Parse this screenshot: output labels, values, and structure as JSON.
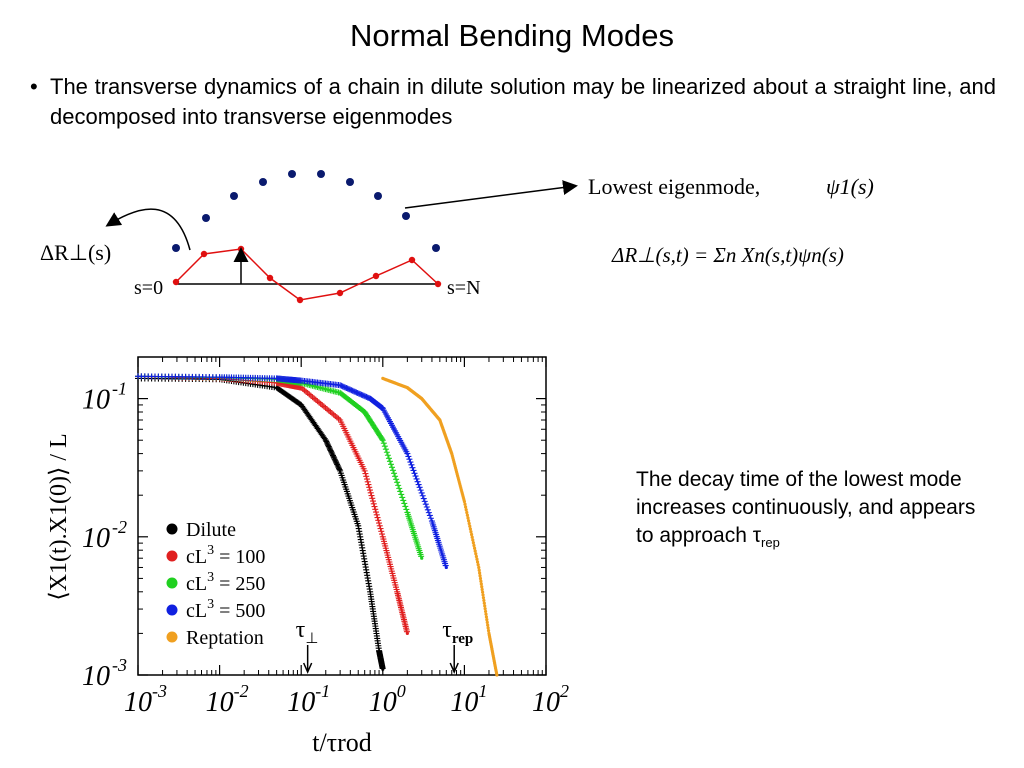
{
  "title": "Normal Bending Modes",
  "bullet": {
    "symbol": "•",
    "text": "The transverse dynamics of a chain in dilute solution may be linearized about a straight line, and decomposed into transverse eigenmodes"
  },
  "diagram": {
    "delta_r_label": "ΔR⊥(s)",
    "s0_label": "s=0",
    "sN_label": "s=N",
    "lowest_mode_label": "Lowest eigenmode,",
    "psi_label": "ψ1(s)",
    "equation": "ΔR⊥(s,t) = Σn Xn(s,t)ψn(s)",
    "colors": {
      "mode_dots": "#0a1a6e",
      "chain": "#e01010"
    }
  },
  "note": {
    "text": "The decay time of the lowest mode increases continuously, and appears to approach τ",
    "subscript": "rep"
  },
  "chart_data": {
    "type": "scatter",
    "xscale": "log",
    "yscale": "log",
    "xlim": [
      0.001,
      100
    ],
    "ylim": [
      0.001,
      0.2
    ],
    "xlabel": "t/τrod",
    "ylabel": "⟨X1(t).X1(0)⟩ / L",
    "x_tick_labels": [
      "10-3",
      "10-2",
      "10-1",
      "100",
      "101",
      "102"
    ],
    "y_tick_labels": [
      "10-3",
      "10-2",
      "10-1"
    ],
    "legend_position": "bottom-left",
    "annotations": [
      {
        "label": "τ⊥",
        "x": 0.12
      },
      {
        "label": "τrep",
        "x": 7.5
      }
    ],
    "series": [
      {
        "name": "Dilute",
        "color": "#000000",
        "x": [
          0.001,
          0.01,
          0.05,
          0.1,
          0.2,
          0.3,
          0.5,
          0.7,
          0.9,
          1.0
        ],
        "y": [
          0.14,
          0.138,
          0.12,
          0.09,
          0.05,
          0.03,
          0.012,
          0.004,
          0.0015,
          0.0011
        ]
      },
      {
        "name": "cL3 = 100",
        "color": "#e02020",
        "x": [
          0.001,
          0.01,
          0.05,
          0.1,
          0.3,
          0.6,
          1.0,
          1.5,
          2.0
        ],
        "y": [
          0.145,
          0.14,
          0.13,
          0.12,
          0.07,
          0.03,
          0.01,
          0.004,
          0.002
        ]
      },
      {
        "name": "cL3 = 250",
        "color": "#20d020",
        "x": [
          0.001,
          0.01,
          0.05,
          0.1,
          0.3,
          0.6,
          1.0,
          2.0,
          3.0
        ],
        "y": [
          0.145,
          0.142,
          0.138,
          0.13,
          0.11,
          0.08,
          0.05,
          0.015,
          0.007
        ]
      },
      {
        "name": "cL3 = 500",
        "color": "#1020e0",
        "x": [
          0.001,
          0.01,
          0.05,
          0.1,
          0.3,
          0.7,
          1.0,
          2.0,
          4.0,
          6.0
        ],
        "y": [
          0.145,
          0.143,
          0.14,
          0.135,
          0.125,
          0.1,
          0.085,
          0.04,
          0.013,
          0.006
        ]
      },
      {
        "name": "Reptation",
        "color": "#f0a020",
        "x": [
          1.0,
          2.0,
          3.0,
          5.0,
          7.0,
          10.0,
          15.0,
          20.0,
          25.0
        ],
        "y": [
          0.14,
          0.12,
          0.1,
          0.07,
          0.04,
          0.018,
          0.006,
          0.002,
          0.001
        ]
      }
    ]
  }
}
